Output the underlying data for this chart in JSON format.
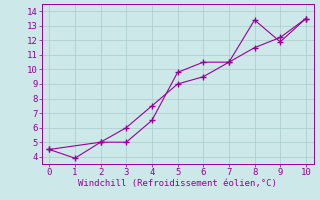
{
  "line1_x": [
    0,
    1,
    2,
    3,
    4,
    5,
    6,
    7,
    8,
    9,
    10
  ],
  "line1_y": [
    4.5,
    3.9,
    5.0,
    5.0,
    6.5,
    9.8,
    10.5,
    10.5,
    13.4,
    11.9,
    13.5
  ],
  "line2_x": [
    0,
    2,
    3,
    4,
    5,
    6,
    7,
    8,
    9,
    10
  ],
  "line2_y": [
    4.5,
    5.0,
    6.0,
    7.5,
    9.0,
    9.5,
    10.5,
    11.5,
    12.2,
    13.5
  ],
  "line_color": "#990099",
  "marker": "+",
  "xlabel": "Windchill (Refroidissement éolien,°C)",
  "xlim": [
    -0.3,
    10.3
  ],
  "ylim": [
    3.5,
    14.5
  ],
  "yticks": [
    4,
    5,
    6,
    7,
    8,
    9,
    10,
    11,
    12,
    13,
    14
  ],
  "xticks": [
    0,
    1,
    2,
    3,
    4,
    5,
    6,
    7,
    8,
    9,
    10
  ],
  "bg_color": "#cce8e8",
  "grid_color": "#aacccc",
  "xlabel_color": "#990099",
  "tick_color": "#990099",
  "label_fontsize": 6.5,
  "tick_fontsize": 6.5
}
